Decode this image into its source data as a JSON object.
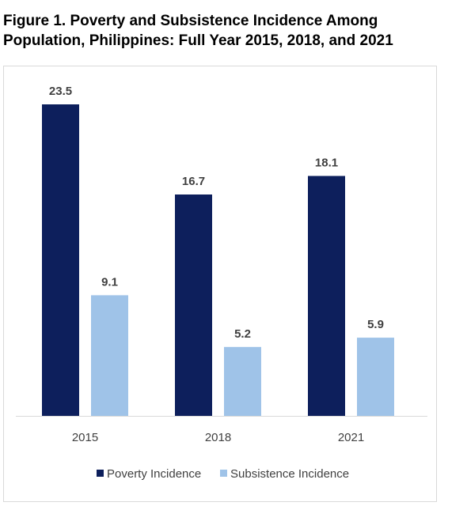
{
  "figure": {
    "title_line1": "Figure 1. Poverty and Subsistence Incidence Among",
    "title_line2": "Population, Philippines: Full Year 2015, 2018, and 2021"
  },
  "colors": {
    "poverty": "#0d1f5c",
    "subsistence": "#9fc3e8",
    "axis": "#d9d9d9"
  },
  "chart_data": {
    "type": "bar",
    "title": "",
    "xlabel": "",
    "ylabel": "",
    "categories": [
      "2015",
      "2018",
      "2021"
    ],
    "series": [
      {
        "name": "Poverty Incidence",
        "values": [
          23.5,
          16.7,
          18.1
        ]
      },
      {
        "name": "Subsistence Incidence",
        "values": [
          9.1,
          5.2,
          5.9
        ]
      }
    ],
    "value_labels": [
      [
        "23.5",
        "16.7",
        "18.1"
      ],
      [
        "9.1",
        "5.2",
        "5.9"
      ]
    ],
    "ylim": [
      0,
      23.5
    ],
    "grid": false,
    "legend_position": "bottom"
  }
}
